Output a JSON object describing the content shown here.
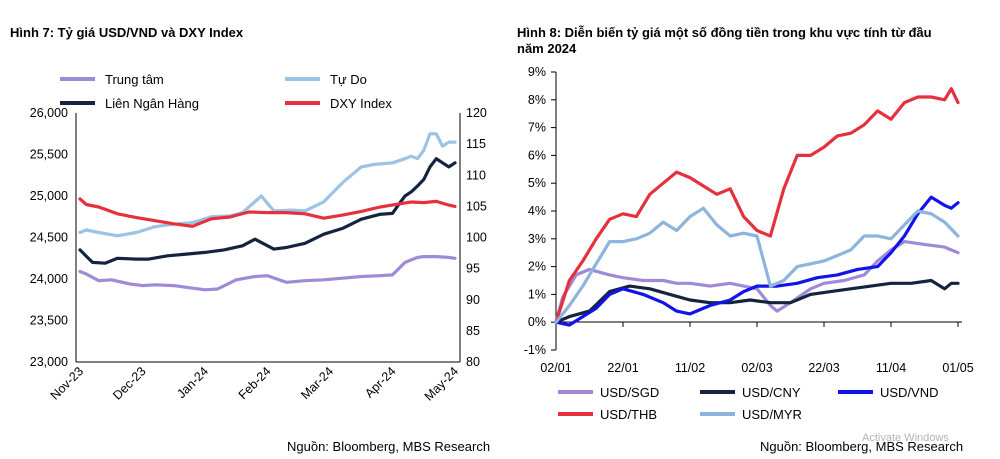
{
  "colors": {
    "purple": "#9f8ad8",
    "lightblue": "#9cc2e6",
    "navy": "#14243f",
    "red": "#e5303d",
    "blue": "#1014e8",
    "steelblue": "#8cb4dc",
    "axis": "#000000"
  },
  "watermark": "Activate Windows",
  "chart_data": [
    {
      "type": "line",
      "title": "Hình 7: Tỷ giá USD/VND và DXY Index",
      "source": "Nguồn: Bloomberg, MBS Research",
      "x_tick_labels": [
        "Nov-23",
        "Dec-23",
        "Jan-24",
        "Feb-24",
        "Mar-24",
        "Apr-24",
        "May-24"
      ],
      "y_left": {
        "ticks": [
          "26,000",
          "25,500",
          "25,000",
          "24,500",
          "24,000",
          "23,500",
          "23,000"
        ],
        "ylim": [
          23000,
          26000
        ]
      },
      "y_right": {
        "ticks": [
          "120",
          "115",
          "110",
          "105",
          "100",
          "95",
          "90",
          "85",
          "80"
        ],
        "ylim": [
          80,
          120
        ]
      },
      "legend_labels": [
        "Trung tâm",
        "Tự Do",
        "Liên Ngân Hàng",
        "DXY Index"
      ],
      "series": [
        {
          "name": "Trung tâm",
          "axis": "left",
          "color": "#9f8ad8",
          "x": [
            0,
            0.1,
            0.3,
            0.5,
            0.8,
            1.0,
            1.2,
            1.5,
            1.7,
            2.0,
            2.2,
            2.5,
            2.8,
            3.0,
            3.3,
            3.6,
            3.9,
            4.2,
            4.5,
            4.8,
            5.0,
            5.2,
            5.4,
            5.5,
            5.7,
            5.9,
            6.0
          ],
          "values": [
            24090,
            24060,
            23980,
            23990,
            23940,
            23920,
            23930,
            23920,
            23900,
            23870,
            23880,
            23990,
            24030,
            24040,
            23960,
            23980,
            23990,
            24010,
            24030,
            24040,
            24050,
            24200,
            24260,
            24270,
            24270,
            24260,
            24250
          ]
        },
        {
          "name": "Tự Do",
          "axis": "left",
          "color": "#9cc2e6",
          "x": [
            0,
            0.1,
            0.3,
            0.6,
            0.9,
            1.2,
            1.5,
            1.8,
            2.1,
            2.4,
            2.6,
            2.9,
            3.1,
            3.4,
            3.6,
            3.9,
            4.2,
            4.5,
            4.7,
            5.0,
            5.2,
            5.3,
            5.4,
            5.5,
            5.6,
            5.7,
            5.8,
            5.9,
            6.0
          ],
          "values": [
            24560,
            24590,
            24560,
            24520,
            24560,
            24630,
            24660,
            24680,
            24750,
            24760,
            24800,
            25000,
            24820,
            24830,
            24820,
            24930,
            25160,
            25350,
            25380,
            25400,
            25450,
            25480,
            25450,
            25550,
            25750,
            25750,
            25600,
            25650,
            25650
          ]
        },
        {
          "name": "Liên Ngân Hàng",
          "axis": "left",
          "color": "#14243f",
          "x": [
            0,
            0.2,
            0.4,
            0.6,
            0.9,
            1.1,
            1.4,
            1.7,
            2.0,
            2.3,
            2.6,
            2.8,
            3.1,
            3.3,
            3.6,
            3.9,
            4.2,
            4.5,
            4.8,
            5.0,
            5.1,
            5.2,
            5.3,
            5.4,
            5.5,
            5.6,
            5.7,
            5.8,
            5.9,
            6.0
          ],
          "values": [
            24350,
            24200,
            24190,
            24250,
            24240,
            24240,
            24280,
            24300,
            24320,
            24350,
            24400,
            24480,
            24360,
            24380,
            24430,
            24540,
            24610,
            24720,
            24780,
            24790,
            24900,
            25000,
            25050,
            25120,
            25200,
            25350,
            25450,
            25400,
            25350,
            25400
          ]
        },
        {
          "name": "DXY Index",
          "axis": "right",
          "color": "#e5303d",
          "x": [
            0,
            0.1,
            0.3,
            0.6,
            0.9,
            1.2,
            1.5,
            1.8,
            2.1,
            2.4,
            2.7,
            3.0,
            3.3,
            3.6,
            3.9,
            4.2,
            4.5,
            4.8,
            5.1,
            5.3,
            5.5,
            5.7,
            5.9,
            6.0
          ],
          "values": [
            106.2,
            105.3,
            104.9,
            103.8,
            103.2,
            102.7,
            102.2,
            101.8,
            103.0,
            103.3,
            104.1,
            104.0,
            104.0,
            103.8,
            103.1,
            103.6,
            104.2,
            104.9,
            105.4,
            105.7,
            105.6,
            105.8,
            105.2,
            105.0
          ]
        }
      ]
    },
    {
      "type": "line",
      "title_lines": [
        "Hình 8: Diễn biến tỷ giá một số đồng tiền trong khu vực tính từ đầu",
        "năm 2024"
      ],
      "source": "Nguồn: Bloomberg, MBS Research",
      "x_tick_labels": [
        "02/01",
        "22/01",
        "11/02",
        "02/03",
        "22/03",
        "11/04",
        "01/05"
      ],
      "y_ticks": [
        "9%",
        "8%",
        "7%",
        "6%",
        "5%",
        "4%",
        "3%",
        "2%",
        "1%",
        "0%",
        "-1%"
      ],
      "ylim": [
        -1,
        9
      ],
      "legend_labels": [
        "USD/SGD",
        "USD/CNY",
        "USD/VND",
        "USD/THB",
        "USD/MYR"
      ],
      "series": [
        {
          "name": "USD/SGD",
          "color": "#9f8ad8",
          "x": [
            0,
            0.1,
            0.3,
            0.5,
            0.8,
            1.0,
            1.3,
            1.6,
            1.8,
            2.0,
            2.3,
            2.6,
            3.0,
            3.2,
            3.3,
            3.5,
            3.8,
            4.0,
            4.3,
            4.6,
            4.8,
            5.0,
            5.2,
            5.5,
            5.8,
            6.0
          ],
          "values": [
            0.0,
            0.9,
            1.7,
            1.9,
            1.7,
            1.6,
            1.5,
            1.5,
            1.4,
            1.4,
            1.3,
            1.4,
            1.2,
            0.6,
            0.4,
            0.7,
            1.2,
            1.4,
            1.5,
            1.7,
            2.2,
            2.6,
            2.9,
            2.8,
            2.7,
            2.5
          ]
        },
        {
          "name": "USD/CNY",
          "color": "#14243f",
          "x": [
            0,
            0.2,
            0.5,
            0.8,
            1.1,
            1.4,
            1.7,
            2.0,
            2.3,
            2.6,
            2.9,
            3.2,
            3.5,
            3.8,
            4.1,
            4.4,
            4.7,
            5.0,
            5.3,
            5.6,
            5.8,
            5.9,
            6.0
          ],
          "values": [
            0.0,
            0.2,
            0.4,
            1.1,
            1.3,
            1.2,
            1.0,
            0.8,
            0.7,
            0.7,
            0.8,
            0.7,
            0.7,
            1.0,
            1.1,
            1.2,
            1.3,
            1.4,
            1.4,
            1.5,
            1.2,
            1.4,
            1.4
          ]
        },
        {
          "name": "USD/VND",
          "color": "#1014e8",
          "x": [
            0,
            0.2,
            0.4,
            0.6,
            0.8,
            1.0,
            1.3,
            1.6,
            1.8,
            2.0,
            2.3,
            2.6,
            2.8,
            3.0,
            3.3,
            3.6,
            3.9,
            4.2,
            4.5,
            4.8,
            5.0,
            5.2,
            5.4,
            5.6,
            5.8,
            5.9,
            6.0
          ],
          "values": [
            0.0,
            -0.1,
            0.2,
            0.5,
            1.0,
            1.2,
            1.0,
            0.7,
            0.4,
            0.3,
            0.6,
            0.8,
            1.1,
            1.3,
            1.3,
            1.4,
            1.6,
            1.7,
            1.9,
            2.0,
            2.5,
            3.1,
            3.9,
            4.5,
            4.2,
            4.1,
            4.3
          ]
        },
        {
          "name": "USD/THB",
          "color": "#e5303d",
          "x": [
            0,
            0.2,
            0.4,
            0.6,
            0.8,
            1.0,
            1.2,
            1.4,
            1.6,
            1.8,
            2.0,
            2.2,
            2.4,
            2.6,
            2.8,
            3.0,
            3.2,
            3.4,
            3.6,
            3.8,
            4.0,
            4.2,
            4.4,
            4.6,
            4.8,
            5.0,
            5.2,
            5.4,
            5.6,
            5.8,
            5.9,
            6.0
          ],
          "values": [
            0.0,
            1.5,
            2.2,
            3.0,
            3.7,
            3.9,
            3.8,
            4.6,
            5.0,
            5.4,
            5.2,
            4.9,
            4.6,
            4.8,
            3.8,
            3.3,
            3.1,
            4.8,
            6.0,
            6.0,
            6.3,
            6.7,
            6.8,
            7.1,
            7.6,
            7.3,
            7.9,
            8.1,
            8.1,
            8.0,
            8.4,
            7.9
          ]
        },
        {
          "name": "USD/MYR",
          "color": "#8cb4dc",
          "x": [
            0,
            0.2,
            0.4,
            0.6,
            0.8,
            1.0,
            1.2,
            1.4,
            1.6,
            1.8,
            2.0,
            2.2,
            2.4,
            2.6,
            2.8,
            3.0,
            3.2,
            3.4,
            3.6,
            3.8,
            4.0,
            4.2,
            4.4,
            4.6,
            4.8,
            5.0,
            5.2,
            5.4,
            5.6,
            5.8,
            6.0
          ],
          "values": [
            0.0,
            0.6,
            1.3,
            2.1,
            2.9,
            2.9,
            3.0,
            3.2,
            3.6,
            3.3,
            3.8,
            4.1,
            3.5,
            3.1,
            3.2,
            3.1,
            1.3,
            1.5,
            2.0,
            2.1,
            2.2,
            2.4,
            2.6,
            3.1,
            3.1,
            3.0,
            3.5,
            4.0,
            3.9,
            3.6,
            3.1
          ]
        }
      ]
    }
  ]
}
